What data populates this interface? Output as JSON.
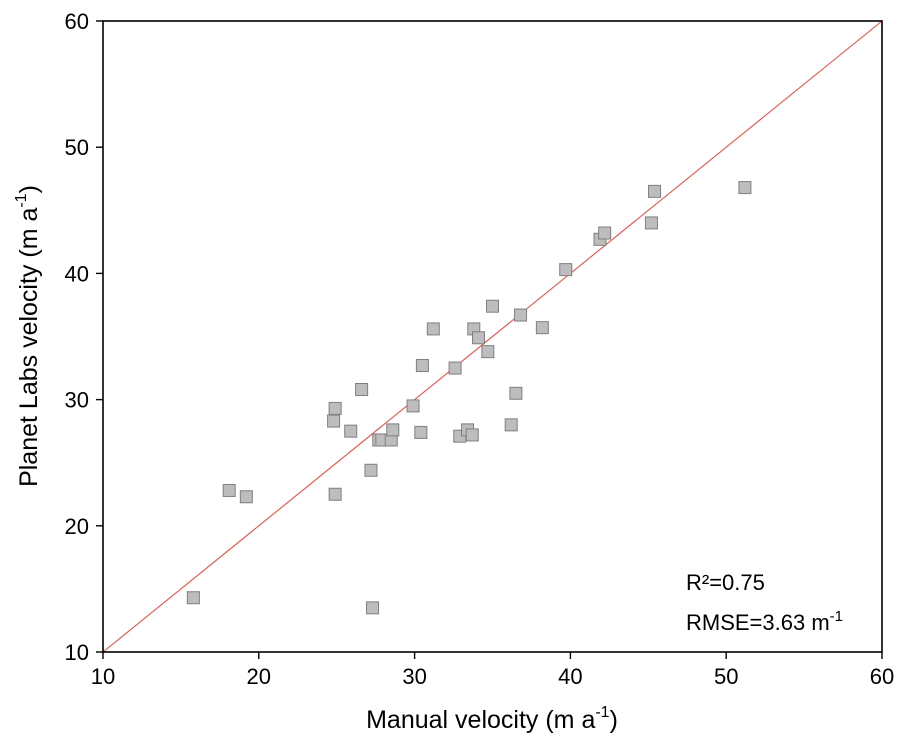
{
  "chart_data": {
    "type": "scatter",
    "title": "",
    "xlabel": "Manual velocity (m a",
    "xlabel_sup": "-1",
    "xlabel_end": ")",
    "ylabel": "Planet Labs velocity (m a",
    "ylabel_sup": "-1",
    "ylabel_end": ")",
    "xlim": [
      10,
      60
    ],
    "ylim": [
      10,
      60
    ],
    "xticks": [
      10,
      20,
      30,
      40,
      50,
      60
    ],
    "yticks": [
      10,
      20,
      30,
      40,
      50,
      60
    ],
    "grid": false,
    "marker": "square",
    "marker_color": "#bdbdbd",
    "marker_edge": "#7f7f7f",
    "line_color": "#e8534a",
    "reference_line": {
      "x": [
        10,
        60
      ],
      "y": [
        10,
        60
      ]
    },
    "annotations": {
      "r2": "R²=0.75",
      "rmse": "RMSE=3.63 m",
      "rmse_sup": "-1"
    },
    "points": [
      {
        "x": 15.8,
        "y": 14.3
      },
      {
        "x": 18.1,
        "y": 22.8
      },
      {
        "x": 19.2,
        "y": 22.3
      },
      {
        "x": 24.8,
        "y": 28.3
      },
      {
        "x": 24.9,
        "y": 29.3
      },
      {
        "x": 24.9,
        "y": 22.5
      },
      {
        "x": 25.9,
        "y": 27.5
      },
      {
        "x": 26.6,
        "y": 30.8
      },
      {
        "x": 27.2,
        "y": 24.4
      },
      {
        "x": 27.3,
        "y": 13.5
      },
      {
        "x": 27.7,
        "y": 26.8
      },
      {
        "x": 27.9,
        "y": 26.8
      },
      {
        "x": 28.5,
        "y": 26.8
      },
      {
        "x": 28.6,
        "y": 27.6
      },
      {
        "x": 29.9,
        "y": 29.5
      },
      {
        "x": 30.4,
        "y": 27.4
      },
      {
        "x": 30.5,
        "y": 32.7
      },
      {
        "x": 31.2,
        "y": 35.6
      },
      {
        "x": 32.6,
        "y": 32.5
      },
      {
        "x": 32.9,
        "y": 27.1
      },
      {
        "x": 33.4,
        "y": 27.6
      },
      {
        "x": 33.7,
        "y": 27.2
      },
      {
        "x": 33.8,
        "y": 35.6
      },
      {
        "x": 34.1,
        "y": 34.9
      },
      {
        "x": 34.7,
        "y": 33.8
      },
      {
        "x": 35.0,
        "y": 37.4
      },
      {
        "x": 36.2,
        "y": 28.0
      },
      {
        "x": 36.5,
        "y": 30.5
      },
      {
        "x": 36.8,
        "y": 36.7
      },
      {
        "x": 38.2,
        "y": 35.7
      },
      {
        "x": 39.7,
        "y": 40.3
      },
      {
        "x": 41.9,
        "y": 42.7
      },
      {
        "x": 42.2,
        "y": 43.2
      },
      {
        "x": 45.2,
        "y": 44.0
      },
      {
        "x": 45.4,
        "y": 46.5
      },
      {
        "x": 51.2,
        "y": 46.8
      }
    ]
  }
}
